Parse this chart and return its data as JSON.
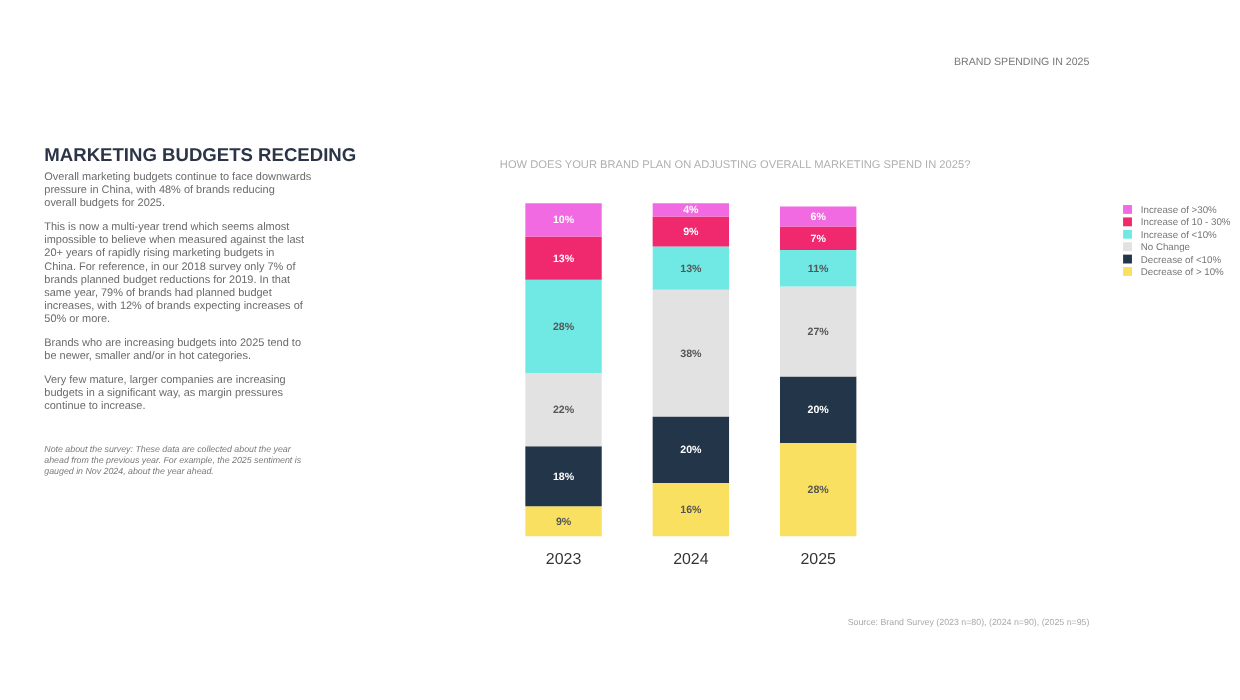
{
  "chart_data": {
    "type": "bar",
    "stacked": true,
    "title": "HOW DOES YOUR BRAND PLAN ON ADJUSTING OVERALL MARKETING SPEND IN 2025?",
    "categories": [
      "2023",
      "2024",
      "2025"
    ],
    "series": [
      {
        "name": "Decrease of > 10%",
        "color": "#fae061",
        "values": [
          9,
          16,
          28
        ],
        "value_labels": [
          "9%",
          "16%",
          "28%"
        ]
      },
      {
        "name": "Decrease of <10%",
        "color": "#233548",
        "values": [
          18,
          20,
          20
        ],
        "value_labels": [
          "18%",
          "20%",
          "20%"
        ]
      },
      {
        "name": "No Change",
        "color": "#e2e2e2",
        "values": [
          22,
          38,
          27
        ],
        "value_labels": [
          "22%",
          "38%",
          "27%"
        ]
      },
      {
        "name": "Increase of <10%",
        "color": "#70e9e4",
        "values": [
          28,
          13,
          11
        ],
        "value_labels": [
          "28%",
          "13%",
          "11%"
        ]
      },
      {
        "name": "Increase of 10 - 30%",
        "color": "#f0286e",
        "values": [
          13,
          9,
          7
        ],
        "value_labels": [
          "13%",
          "9%",
          "7%"
        ]
      },
      {
        "name": "Increase of >30%",
        "color": "#f26ae2",
        "values": [
          10,
          4,
          6
        ],
        "value_labels": [
          "10%",
          "4%",
          "6%"
        ]
      }
    ],
    "legend": "right",
    "annotations": [
      "BRAND SPENDING IN 2025",
      "MARKETING BUDGETS RECEDING",
      "Overall marketing budgets continue to face downwards pressure in China, with 48% of brands reducing overall budgets for 2025.",
      "This is now a multi-year trend which seems almost impossible to believe when measured against the last 20+ years of rapidly rising marketing budgets in China. For reference, in our 2018 survey only 7% of brands planned budget reductions for 2019. In that same year, 79% of brands had planned budget increases, with 12% of brands expecting increases of 50% or more.",
      "Brands who are increasing budgets into 2025 tend to be newer, smaller and/or in hot categories.",
      "Very few mature, larger companies are increasing budgets in a significant way, as margin pressures continue to increase.",
      "Note about the survey: These data are collected about the year ahead from the previous year. For example, the 2025 sentiment is gauged in Nov 2024, about the year ahead.",
      "Source: Brand Survey (2023 n=80), (2024 n=90), (2025 n=95)"
    ]
  }
}
